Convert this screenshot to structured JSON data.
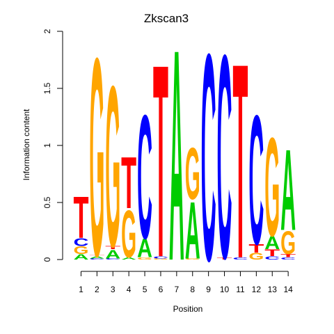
{
  "chart_data": {
    "type": "sequence-logo",
    "title": "Zkscan3",
    "xlabel": "Position",
    "ylabel": "Information content",
    "ylim": [
      0,
      2
    ],
    "yticks": [
      "0",
      "0.5",
      "1",
      "1.5",
      "2"
    ],
    "positions": [
      "1",
      "2",
      "3",
      "4",
      "5",
      "6",
      "7",
      "8",
      "9",
      "10",
      "11",
      "12",
      "13",
      "14"
    ],
    "colors": {
      "A": "#00cc00",
      "C": "#0000ff",
      "G": "#ffa500",
      "T": "#ff0000"
    },
    "stacks": [
      [
        {
          "b": "A",
          "h": 0.05
        },
        {
          "b": "G",
          "h": 0.07
        },
        {
          "b": "C",
          "h": 0.07
        },
        {
          "b": "T",
          "h": 0.38
        }
      ],
      [
        {
          "b": "C",
          "h": 0.01
        },
        {
          "b": "A",
          "h": 0.02
        },
        {
          "b": "T",
          "h": 0.01
        },
        {
          "b": "G",
          "h": 1.81
        }
      ],
      [
        {
          "b": "C",
          "h": 0.01
        },
        {
          "b": "A",
          "h": 0.08
        },
        {
          "b": "T",
          "h": 0.03
        },
        {
          "b": "G",
          "h": 1.47
        }
      ],
      [
        {
          "b": "A",
          "h": 0.02
        },
        {
          "b": "G",
          "h": 0.43
        },
        {
          "b": "T",
          "h": 0.47
        }
      ],
      [
        {
          "b": "G",
          "h": 0.02
        },
        {
          "b": "A",
          "h": 0.17
        },
        {
          "b": "C",
          "h": 1.13
        }
      ],
      [
        {
          "b": "G",
          "h": 0.01
        },
        {
          "b": "C",
          "h": 0.02
        },
        {
          "b": "T",
          "h": 1.76
        }
      ],
      [
        {
          "b": "A",
          "h": 1.93
        }
      ],
      [
        {
          "b": "G",
          "h": 0.01
        },
        {
          "b": "A",
          "h": 0.52
        },
        {
          "b": "G",
          "h": 0.47
        }
      ],
      [
        {
          "b": "C",
          "h": 1.89
        }
      ],
      [
        {
          "b": "T",
          "h": 0.02
        },
        {
          "b": "C",
          "h": 1.86
        }
      ],
      [
        {
          "b": "C",
          "h": 0.02
        },
        {
          "b": "T",
          "h": 1.78
        }
      ],
      [
        {
          "b": "G",
          "h": 0.06
        },
        {
          "b": "T",
          "h": 0.08
        },
        {
          "b": "C",
          "h": 1.18
        }
      ],
      [
        {
          "b": "C",
          "h": 0.03
        },
        {
          "b": "T",
          "h": 0.06
        },
        {
          "b": "A",
          "h": 0.12
        },
        {
          "b": "G",
          "h": 0.9
        }
      ],
      [
        {
          "b": "C",
          "h": 0.02
        },
        {
          "b": "T",
          "h": 0.03
        },
        {
          "b": "G",
          "h": 0.21
        },
        {
          "b": "A",
          "h": 0.74
        }
      ]
    ]
  }
}
